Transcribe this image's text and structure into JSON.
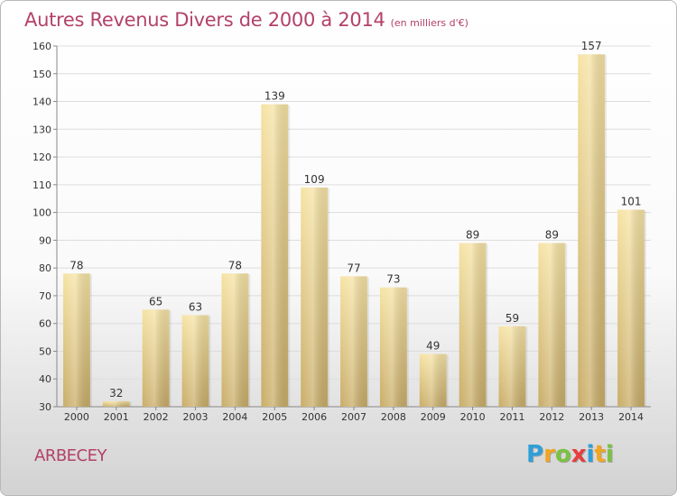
{
  "title": "Autres Revenus Divers de 2000 à 2014",
  "subtitle": "(en milliers d'€)",
  "commune": "ARBECEY",
  "logo": {
    "letters": [
      "P",
      "r",
      "o",
      "x",
      "i",
      "t",
      "i"
    ],
    "colors": [
      "#2e9fd8",
      "#f2a51e",
      "#7cc242",
      "#e83d3d",
      "#2e9fd8",
      "#f2a51e",
      "#7cc242"
    ]
  },
  "chart_data": {
    "type": "bar",
    "categories": [
      "2000",
      "2001",
      "2002",
      "2003",
      "2004",
      "2005",
      "2006",
      "2007",
      "2008",
      "2009",
      "2010",
      "2011",
      "2012",
      "2013",
      "2014"
    ],
    "values": [
      78,
      32,
      65,
      63,
      78,
      139,
      109,
      77,
      73,
      49,
      89,
      59,
      89,
      157,
      101
    ],
    "data_labels": [
      "78",
      "32",
      "65",
      "63",
      "78",
      "139",
      "109",
      "77",
      "73",
      "49",
      "89",
      "59",
      "89",
      "157",
      "101"
    ],
    "title": "Autres Revenus Divers de 2000 à 2014",
    "subtitle": "(en milliers d'€)",
    "xlabel": "",
    "ylabel": "",
    "ylim": [
      30,
      160
    ],
    "yticks": [
      "30",
      "40",
      "50",
      "60",
      "70",
      "80",
      "90",
      "100",
      "110",
      "120",
      "130",
      "140",
      "150",
      "160"
    ],
    "grid": true,
    "bar_color": "#e6cf8a"
  }
}
